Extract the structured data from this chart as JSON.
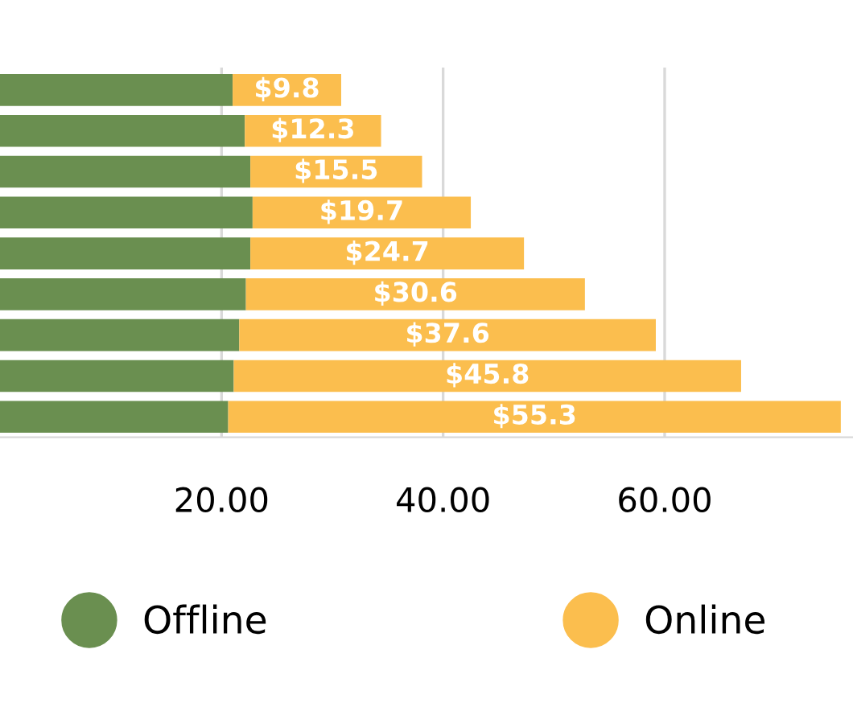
{
  "chart_data": {
    "type": "bar",
    "orientation": "horizontal",
    "stacked": true,
    "categories": [
      null,
      null,
      null,
      null,
      null,
      null,
      null,
      null,
      null
    ],
    "series": [
      {
        "name": "Offline",
        "color": "#6a8f50",
        "values": [
          21.0,
          22.1,
          22.6,
          22.8,
          22.6,
          22.2,
          21.6,
          21.1,
          20.6
        ]
      },
      {
        "name": "Online",
        "color": "#fbbe4e",
        "values": [
          9.8,
          12.3,
          15.5,
          19.7,
          24.7,
          30.6,
          37.6,
          45.8,
          55.3
        ],
        "value_labels": [
          "$9.8",
          "$12.3",
          "$15.5",
          "$19.7",
          "$24.7",
          "$30.6",
          "$37.6",
          "$45.8",
          "$55.3"
        ]
      }
    ],
    "xlim": [
      0,
      77
    ],
    "xticks": [
      {
        "value": 20,
        "label": "20.00"
      },
      {
        "value": 40,
        "label": "40.00"
      },
      {
        "value": 60,
        "label": "60.00"
      }
    ],
    "grid": "x",
    "legend": "bottom"
  }
}
